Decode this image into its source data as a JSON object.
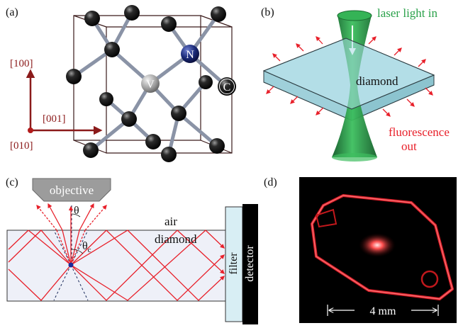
{
  "panels": {
    "a": {
      "label": "(a)",
      "axes": {
        "x": "[001]",
        "y": "[100]",
        "z": "[010]"
      },
      "atoms": {
        "vacancy": "V",
        "nitrogen": "N",
        "carbon": "C"
      }
    },
    "b": {
      "label": "(b)",
      "laser_label": "laser light in",
      "diamond_label": "diamond",
      "fluorescence_label_1": "fluorescence",
      "fluorescence_label_2": "out"
    },
    "c": {
      "label": "(c)",
      "objective_label": "objective",
      "theta": "θ",
      "theta_c": "θ",
      "theta_c_sub": "c",
      "air_label": "air",
      "diamond_label": "diamond",
      "filter_label": "filter",
      "detector_label": "detector"
    },
    "d": {
      "label": "(d)",
      "scale_label": "4 mm"
    }
  },
  "colors": {
    "red": "#e8202a",
    "dark_red": "#8b1a1a",
    "green": "#2aa14a",
    "dark_green": "#1a6b30",
    "diamond_fill": "#a9dbe3",
    "atom": "#111111",
    "bond": "#8a93a6",
    "detector": "#000000",
    "filter_fill": "#d8eef4"
  }
}
